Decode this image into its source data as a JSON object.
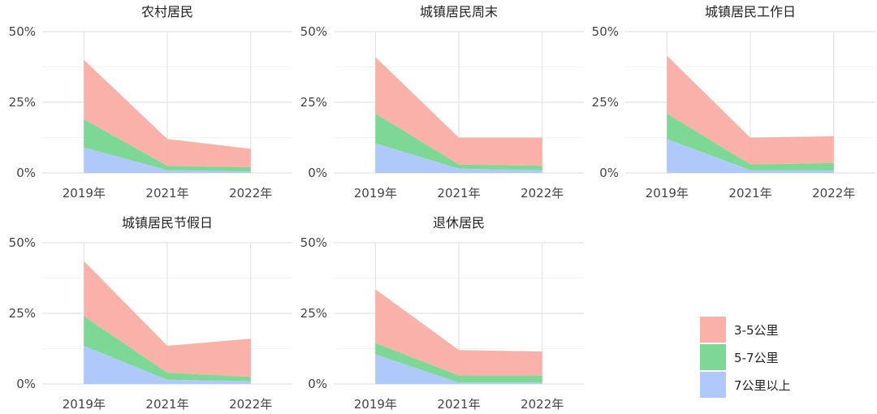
{
  "chart_data": {
    "type": "area",
    "stacked": true,
    "grid": true,
    "legend_position": "bottom-right",
    "ylim": [
      0,
      50
    ],
    "y_ticks": [
      "0%",
      "25%",
      "50%"
    ],
    "categories": [
      "2019年",
      "2021年",
      "2022年"
    ],
    "series_order": [
      "7公里以上",
      "5-7公里",
      "3-5公里"
    ],
    "colors": {
      "3-5公里": "#f8a8a0",
      "5-7公里": "#6fd48a",
      "7公里以上": "#a6c4f9"
    },
    "legend": [
      "3-5公里",
      "5-7公里",
      "7公里以上"
    ],
    "panels": [
      {
        "title": "农村居民",
        "series": [
          {
            "name": "7公里以上",
            "values": [
              9,
              1,
              0.5
            ]
          },
          {
            "name": "5-7公里",
            "values": [
              10,
              1.5,
              1.5
            ]
          },
          {
            "name": "3-5公里",
            "values": [
              21,
              9.5,
              6.5
            ]
          }
        ]
      },
      {
        "title": "城镇居民周末",
        "series": [
          {
            "name": "7公里以上",
            "values": [
              10.5,
              1.5,
              1
            ]
          },
          {
            "name": "5-7公里",
            "values": [
              10.5,
              1.5,
              1.5
            ]
          },
          {
            "name": "3-5公里",
            "values": [
              20,
              9.5,
              10
            ]
          }
        ]
      },
      {
        "title": "城镇居民工作日",
        "series": [
          {
            "name": "7公里以上",
            "values": [
              12,
              1,
              1
            ]
          },
          {
            "name": "5-7公里",
            "values": [
              9,
              2,
              2.5
            ]
          },
          {
            "name": "3-5公里",
            "values": [
              20.5,
              9.5,
              9.5
            ]
          }
        ]
      },
      {
        "title": "城镇居民节假日",
        "series": [
          {
            "name": "7公里以上",
            "values": [
              13.5,
              1.5,
              1
            ]
          },
          {
            "name": "5-7公里",
            "values": [
              10.5,
              2.5,
              1.5
            ]
          },
          {
            "name": "3-5公里",
            "values": [
              19.5,
              9.5,
              13.5
            ]
          }
        ]
      },
      {
        "title": "退休居民",
        "series": [
          {
            "name": "7公里以上",
            "values": [
              10.5,
              0.5,
              0.5
            ]
          },
          {
            "name": "5-7公里",
            "values": [
              4,
              2.5,
              2.5
            ]
          },
          {
            "name": "3-5公里",
            "values": [
              19,
              9,
              8.5
            ]
          }
        ]
      }
    ]
  }
}
